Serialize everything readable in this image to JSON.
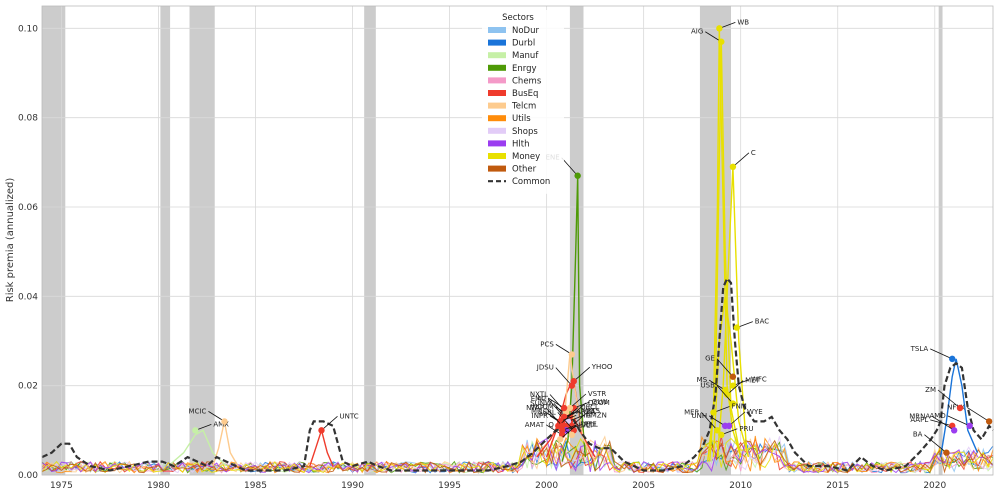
{
  "chart_data": {
    "type": "line",
    "title": "",
    "xlabel": "",
    "ylabel": "Risk premia (annualized)",
    "xlim": [
      1974,
      2023
    ],
    "ylim": [
      0,
      0.105
    ],
    "x_ticks": [
      1975,
      1980,
      1985,
      1990,
      1995,
      2000,
      2005,
      2010,
      2015,
      2020
    ],
    "x_tick_labels": [
      "1975",
      "1980",
      "1985",
      "1990",
      "1995",
      "2000",
      "2005",
      "2010",
      "2015",
      "2020"
    ],
    "y_ticks": [
      0.0,
      0.02,
      0.04,
      0.06,
      0.08,
      0.1
    ],
    "y_tick_labels": [
      "0.00",
      "0.02",
      "0.04",
      "0.06",
      "0.08",
      "0.10"
    ],
    "grid": true,
    "recessions": [
      [
        1974.0,
        1975.2
      ],
      [
        1980.1,
        1980.6
      ],
      [
        1981.6,
        1982.9
      ],
      [
        1990.6,
        1991.2
      ],
      [
        2001.2,
        2001.9
      ],
      [
        2007.9,
        2009.5
      ],
      [
        2020.2,
        2020.4
      ]
    ],
    "legend": {
      "title": "Sectors",
      "placement": "top-center",
      "entries": [
        {
          "name": "NoDur",
          "color": "#8ec3f0",
          "style": "solid"
        },
        {
          "name": "Durbl",
          "color": "#1a74d9",
          "style": "solid"
        },
        {
          "name": "Manuf",
          "color": "#c6f0a6",
          "style": "solid"
        },
        {
          "name": "Enrgy",
          "color": "#4e9a06",
          "style": "solid"
        },
        {
          "name": "Chems",
          "color": "#f49ac8",
          "style": "solid"
        },
        {
          "name": "BusEq",
          "color": "#ef3b2c",
          "style": "solid"
        },
        {
          "name": "Telcm",
          "color": "#fdcb8e",
          "style": "solid"
        },
        {
          "name": "Utils",
          "color": "#ff8c0a",
          "style": "solid"
        },
        {
          "name": "Shops",
          "color": "#e2ccf7",
          "style": "solid"
        },
        {
          "name": "Hlth",
          "color": "#9b3df0",
          "style": "solid"
        },
        {
          "name": "Money",
          "color": "#e8e000",
          "style": "solid"
        },
        {
          "name": "Other",
          "color": "#c05a0e",
          "style": "solid"
        },
        {
          "name": "Common",
          "color": "#333333",
          "style": "dashed"
        }
      ]
    },
    "common_series": {
      "name": "Common",
      "x": [
        1974.0,
        1974.5,
        1975.0,
        1975.4,
        1975.8,
        1976.5,
        1977.5,
        1978.5,
        1979.5,
        1980.2,
        1980.8,
        1981.5,
        1982.0,
        1982.5,
        1983.0,
        1983.5,
        1984.5,
        1985.5,
        1986.5,
        1987.5,
        1987.8,
        1988.0,
        1988.5,
        1989.0,
        1989.5,
        1990.0,
        1990.8,
        1991.3,
        1992.0,
        1993.0,
        1994.0,
        1995.0,
        1996.0,
        1997.0,
        1998.0,
        1998.7,
        1999.3,
        2000.0,
        2000.5,
        2001.0,
        2001.3,
        2001.7,
        2002.2,
        2002.7,
        2003.3,
        2004.0,
        2005.0,
        2006.0,
        2007.0,
        2007.6,
        2008.0,
        2008.4,
        2008.7,
        2008.9,
        2009.1,
        2009.3,
        2009.5,
        2009.7,
        2009.9,
        2010.2,
        2010.7,
        2011.2,
        2011.6,
        2012.0,
        2012.4,
        2012.8,
        2013.5,
        2014.5,
        2015.5,
        2016.2,
        2016.8,
        2017.5,
        2018.5,
        2019.2,
        2019.8,
        2020.1,
        2020.3,
        2020.5,
        2020.8,
        2021.1,
        2021.4,
        2021.7,
        2022.0,
        2022.4,
        2022.8,
        2023.0
      ],
      "y": [
        0.004,
        0.005,
        0.007,
        0.007,
        0.004,
        0.002,
        0.001,
        0.002,
        0.003,
        0.003,
        0.002,
        0.004,
        0.003,
        0.002,
        0.004,
        0.003,
        0.001,
        0.001,
        0.001,
        0.002,
        0.01,
        0.012,
        0.012,
        0.011,
        0.003,
        0.002,
        0.003,
        0.002,
        0.001,
        0.001,
        0.001,
        0.001,
        0.001,
        0.001,
        0.002,
        0.003,
        0.005,
        0.008,
        0.01,
        0.011,
        0.013,
        0.01,
        0.007,
        0.006,
        0.006,
        0.003,
        0.001,
        0.001,
        0.002,
        0.004,
        0.006,
        0.01,
        0.018,
        0.03,
        0.042,
        0.044,
        0.043,
        0.03,
        0.02,
        0.015,
        0.012,
        0.012,
        0.013,
        0.01,
        0.008,
        0.005,
        0.002,
        0.002,
        0.001,
        0.004,
        0.002,
        0.001,
        0.002,
        0.005,
        0.008,
        0.01,
        0.012,
        0.02,
        0.024,
        0.025,
        0.024,
        0.015,
        0.01,
        0.008,
        0.011,
        0.01
      ]
    },
    "sector_spikes": [
      {
        "sector": "Money",
        "x": [
          2008.3,
          2008.6,
          2008.8,
          2008.9,
          2009.1,
          2009.3,
          2009.6,
          2010.0
        ],
        "y": [
          0.003,
          0.015,
          0.06,
          0.1,
          0.06,
          0.02,
          0.01,
          0.004
        ]
      },
      {
        "sector": "Money",
        "x": [
          2008.4,
          2008.7,
          2008.9,
          2009.0,
          2009.2,
          2009.5,
          2010.0
        ],
        "y": [
          0.003,
          0.02,
          0.07,
          0.097,
          0.05,
          0.015,
          0.004
        ]
      },
      {
        "sector": "Money",
        "x": [
          2008.8,
          2009.1,
          2009.4,
          2009.6,
          2009.9,
          2010.3
        ],
        "y": [
          0.004,
          0.02,
          0.05,
          0.069,
          0.03,
          0.006
        ]
      },
      {
        "sector": "Money",
        "x": [
          2008.6,
          2008.9,
          2009.2,
          2009.5,
          2009.9,
          2010.4
        ],
        "y": [
          0.004,
          0.03,
          0.04,
          0.03,
          0.012,
          0.004
        ]
      },
      {
        "sector": "Enrgy",
        "x": [
          2000.8,
          2001.1,
          2001.3,
          2001.5,
          2001.6,
          2001.7,
          2002.0
        ],
        "y": [
          0.003,
          0.008,
          0.02,
          0.05,
          0.067,
          0.02,
          0.004
        ]
      },
      {
        "sector": "BusEq",
        "x": [
          2000.0,
          2000.5,
          2001.0,
          2001.2,
          2001.4,
          2001.8,
          2002.3
        ],
        "y": [
          0.004,
          0.01,
          0.018,
          0.02,
          0.021,
          0.01,
          0.004
        ]
      },
      {
        "sector": "BusEq",
        "x": [
          1999.5,
          2000.2,
          2000.8,
          2001.2,
          2001.7,
          2002.5
        ],
        "y": [
          0.004,
          0.008,
          0.013,
          0.015,
          0.01,
          0.004
        ]
      },
      {
        "sector": "Telcm",
        "x": [
          2000.5,
          2000.9,
          2001.2,
          2001.5,
          2001.9,
          2002.5
        ],
        "y": [
          0.004,
          0.012,
          0.027,
          0.018,
          0.008,
          0.003
        ]
      },
      {
        "sector": "Durbl",
        "x": [
          2020.3,
          2020.6,
          2020.9,
          2021.1,
          2021.4,
          2021.7,
          2022.2
        ],
        "y": [
          0.004,
          0.012,
          0.022,
          0.026,
          0.02,
          0.01,
          0.005
        ]
      },
      {
        "sector": "Manuf",
        "x": [
          1980.5,
          1981.3,
          1981.9,
          1982.3,
          1982.8,
          1983.5
        ],
        "y": [
          0.002,
          0.005,
          0.009,
          0.01,
          0.005,
          0.002
        ]
      },
      {
        "sector": "Telcm",
        "x": [
          1982.8,
          1983.1,
          1983.4,
          1983.7,
          1984.1
        ],
        "y": [
          0.002,
          0.006,
          0.012,
          0.005,
          0.002
        ]
      },
      {
        "sector": "BusEq",
        "x": [
          1987.8,
          1988.1,
          1988.4,
          1988.7,
          1989.0
        ],
        "y": [
          0.002,
          0.006,
          0.01,
          0.005,
          0.002
        ]
      }
    ],
    "annotations": [
      {
        "label": "WB",
        "x": 2008.9,
        "y": 0.1,
        "color": "#e8e000"
      },
      {
        "label": "AIG",
        "x": 2009.0,
        "y": 0.097,
        "color": "#e8e000"
      },
      {
        "label": "C",
        "x": 2009.6,
        "y": 0.069,
        "color": "#e8e000"
      },
      {
        "label": "ENE",
        "x": 2001.6,
        "y": 0.067,
        "color": "#4e9a06"
      },
      {
        "label": "BAC",
        "x": 2009.8,
        "y": 0.033,
        "color": "#e8e000"
      },
      {
        "label": "PCS",
        "x": 2001.3,
        "y": 0.027,
        "color": "#fdcb8e"
      },
      {
        "label": "YHOO",
        "x": 2001.4,
        "y": 0.021,
        "color": "#ef3b2c"
      },
      {
        "label": "JDSU",
        "x": 2001.3,
        "y": 0.02,
        "color": "#ef3b2c"
      },
      {
        "label": "GLW",
        "x": 2001.4,
        "y": 0.015,
        "color": "#ef3b2c"
      },
      {
        "label": "WCOM",
        "x": 2001.3,
        "y": 0.013,
        "color": "#fdcb8e"
      },
      {
        "label": "QCOM",
        "x": 2001.2,
        "y": 0.013,
        "color": "#ef3b2c"
      },
      {
        "label": "SUNW",
        "x": 2001.2,
        "y": 0.012,
        "color": "#ef3b2c"
      },
      {
        "label": "AMZN",
        "x": 2001.1,
        "y": 0.012,
        "color": "#e2ccf7"
      },
      {
        "label": "INPR",
        "x": 2001.0,
        "y": 0.011,
        "color": "#ef3b2c"
      },
      {
        "label": "A",
        "x": 2001.3,
        "y": 0.011,
        "color": "#ef3b2c"
      },
      {
        "label": "SEBL",
        "x": 2001.4,
        "y": 0.01,
        "color": "#ef3b2c"
      },
      {
        "label": "PFE",
        "x": 2001.0,
        "y": 0.01,
        "color": "#9b3df0"
      },
      {
        "label": "Q",
        "x": 2001.3,
        "y": 0.009,
        "color": "#fdcb8e"
      },
      {
        "label": "VSTR",
        "x": 2001.2,
        "y": 0.015,
        "color": "#fdcb8e"
      },
      {
        "label": "NXTL",
        "x": 2001.0,
        "y": 0.014,
        "color": "#fdcb8e"
      },
      {
        "label": "VRTS",
        "x": 2000.9,
        "y": 0.013,
        "color": "#ef3b2c"
      },
      {
        "label": "LU",
        "x": 2000.9,
        "y": 0.015,
        "color": "#ef3b2c"
      },
      {
        "label": "ORCL",
        "x": 2000.8,
        "y": 0.012,
        "color": "#ef3b2c"
      },
      {
        "label": "EMC",
        "x": 2000.9,
        "y": 0.013,
        "color": "#ef3b2c"
      },
      {
        "label": "DIG",
        "x": 2000.7,
        "y": 0.012,
        "color": "#ef3b2c"
      },
      {
        "label": "MU",
        "x": 2000.7,
        "y": 0.012,
        "color": "#ef3b2c"
      },
      {
        "label": "ARBA",
        "x": 2000.6,
        "y": 0.011,
        "color": "#ef3b2c"
      },
      {
        "label": "NTAP",
        "x": 2000.8,
        "y": 0.011,
        "color": "#ef3b2c"
      },
      {
        "label": "DELL",
        "x": 2000.8,
        "y": 0.01,
        "color": "#ef3b2c"
      },
      {
        "label": "AMAT",
        "x": 2000.8,
        "y": 0.009,
        "color": "#ef3b2c"
      },
      {
        "label": "LVLT",
        "x": 2000.7,
        "y": 0.008,
        "color": "#fdcb8e"
      },
      {
        "label": "GE",
        "x": 2009.6,
        "y": 0.022,
        "color": "#c05a0e"
      },
      {
        "label": "WFC",
        "x": 2009.6,
        "y": 0.02,
        "color": "#e8e000"
      },
      {
        "label": "MS",
        "x": 2009.2,
        "y": 0.019,
        "color": "#e8e000"
      },
      {
        "label": "MET",
        "x": 2009.3,
        "y": 0.018,
        "color": "#e8e000"
      },
      {
        "label": "USB",
        "x": 2009.6,
        "y": 0.016,
        "color": "#e8e000"
      },
      {
        "label": "FNM",
        "x": 2008.6,
        "y": 0.014,
        "color": "#e8e000"
      },
      {
        "label": "UNH",
        "x": 2009.2,
        "y": 0.011,
        "color": "#9b3df0"
      },
      {
        "label": "WYE",
        "x": 2009.4,
        "y": 0.011,
        "color": "#9b3df0"
      },
      {
        "label": "MER",
        "x": 2008.8,
        "y": 0.01,
        "color": "#e8e000"
      },
      {
        "label": "PRU",
        "x": 2009.0,
        "y": 0.009,
        "color": "#e8e000"
      },
      {
        "label": "TSLA",
        "x": 2020.9,
        "y": 0.026,
        "color": "#1a74d9"
      },
      {
        "label": "NFLX",
        "x": 2022.8,
        "y": 0.012,
        "color": "#c05a0e"
      },
      {
        "label": "ZM",
        "x": 2021.3,
        "y": 0.015,
        "color": "#ef3b2c"
      },
      {
        "label": "AAPL",
        "x": 2020.9,
        "y": 0.011,
        "color": "#ef3b2c"
      },
      {
        "label": "AMD",
        "x": 2021.8,
        "y": 0.011,
        "color": "#9b3df0"
      },
      {
        "label": "MRNA",
        "x": 2021.0,
        "y": 0.01,
        "color": "#9b3df0"
      },
      {
        "label": "BA",
        "x": 2020.6,
        "y": 0.005,
        "color": "#c05a0e"
      },
      {
        "label": "AMX",
        "x": 1981.9,
        "y": 0.01,
        "color": "#c6f0a6"
      },
      {
        "label": "MCIC",
        "x": 1983.4,
        "y": 0.012,
        "color": "#fdcb8e"
      },
      {
        "label": "UNTC",
        "x": 1988.4,
        "y": 0.01,
        "color": "#ef3b2c"
      }
    ]
  }
}
